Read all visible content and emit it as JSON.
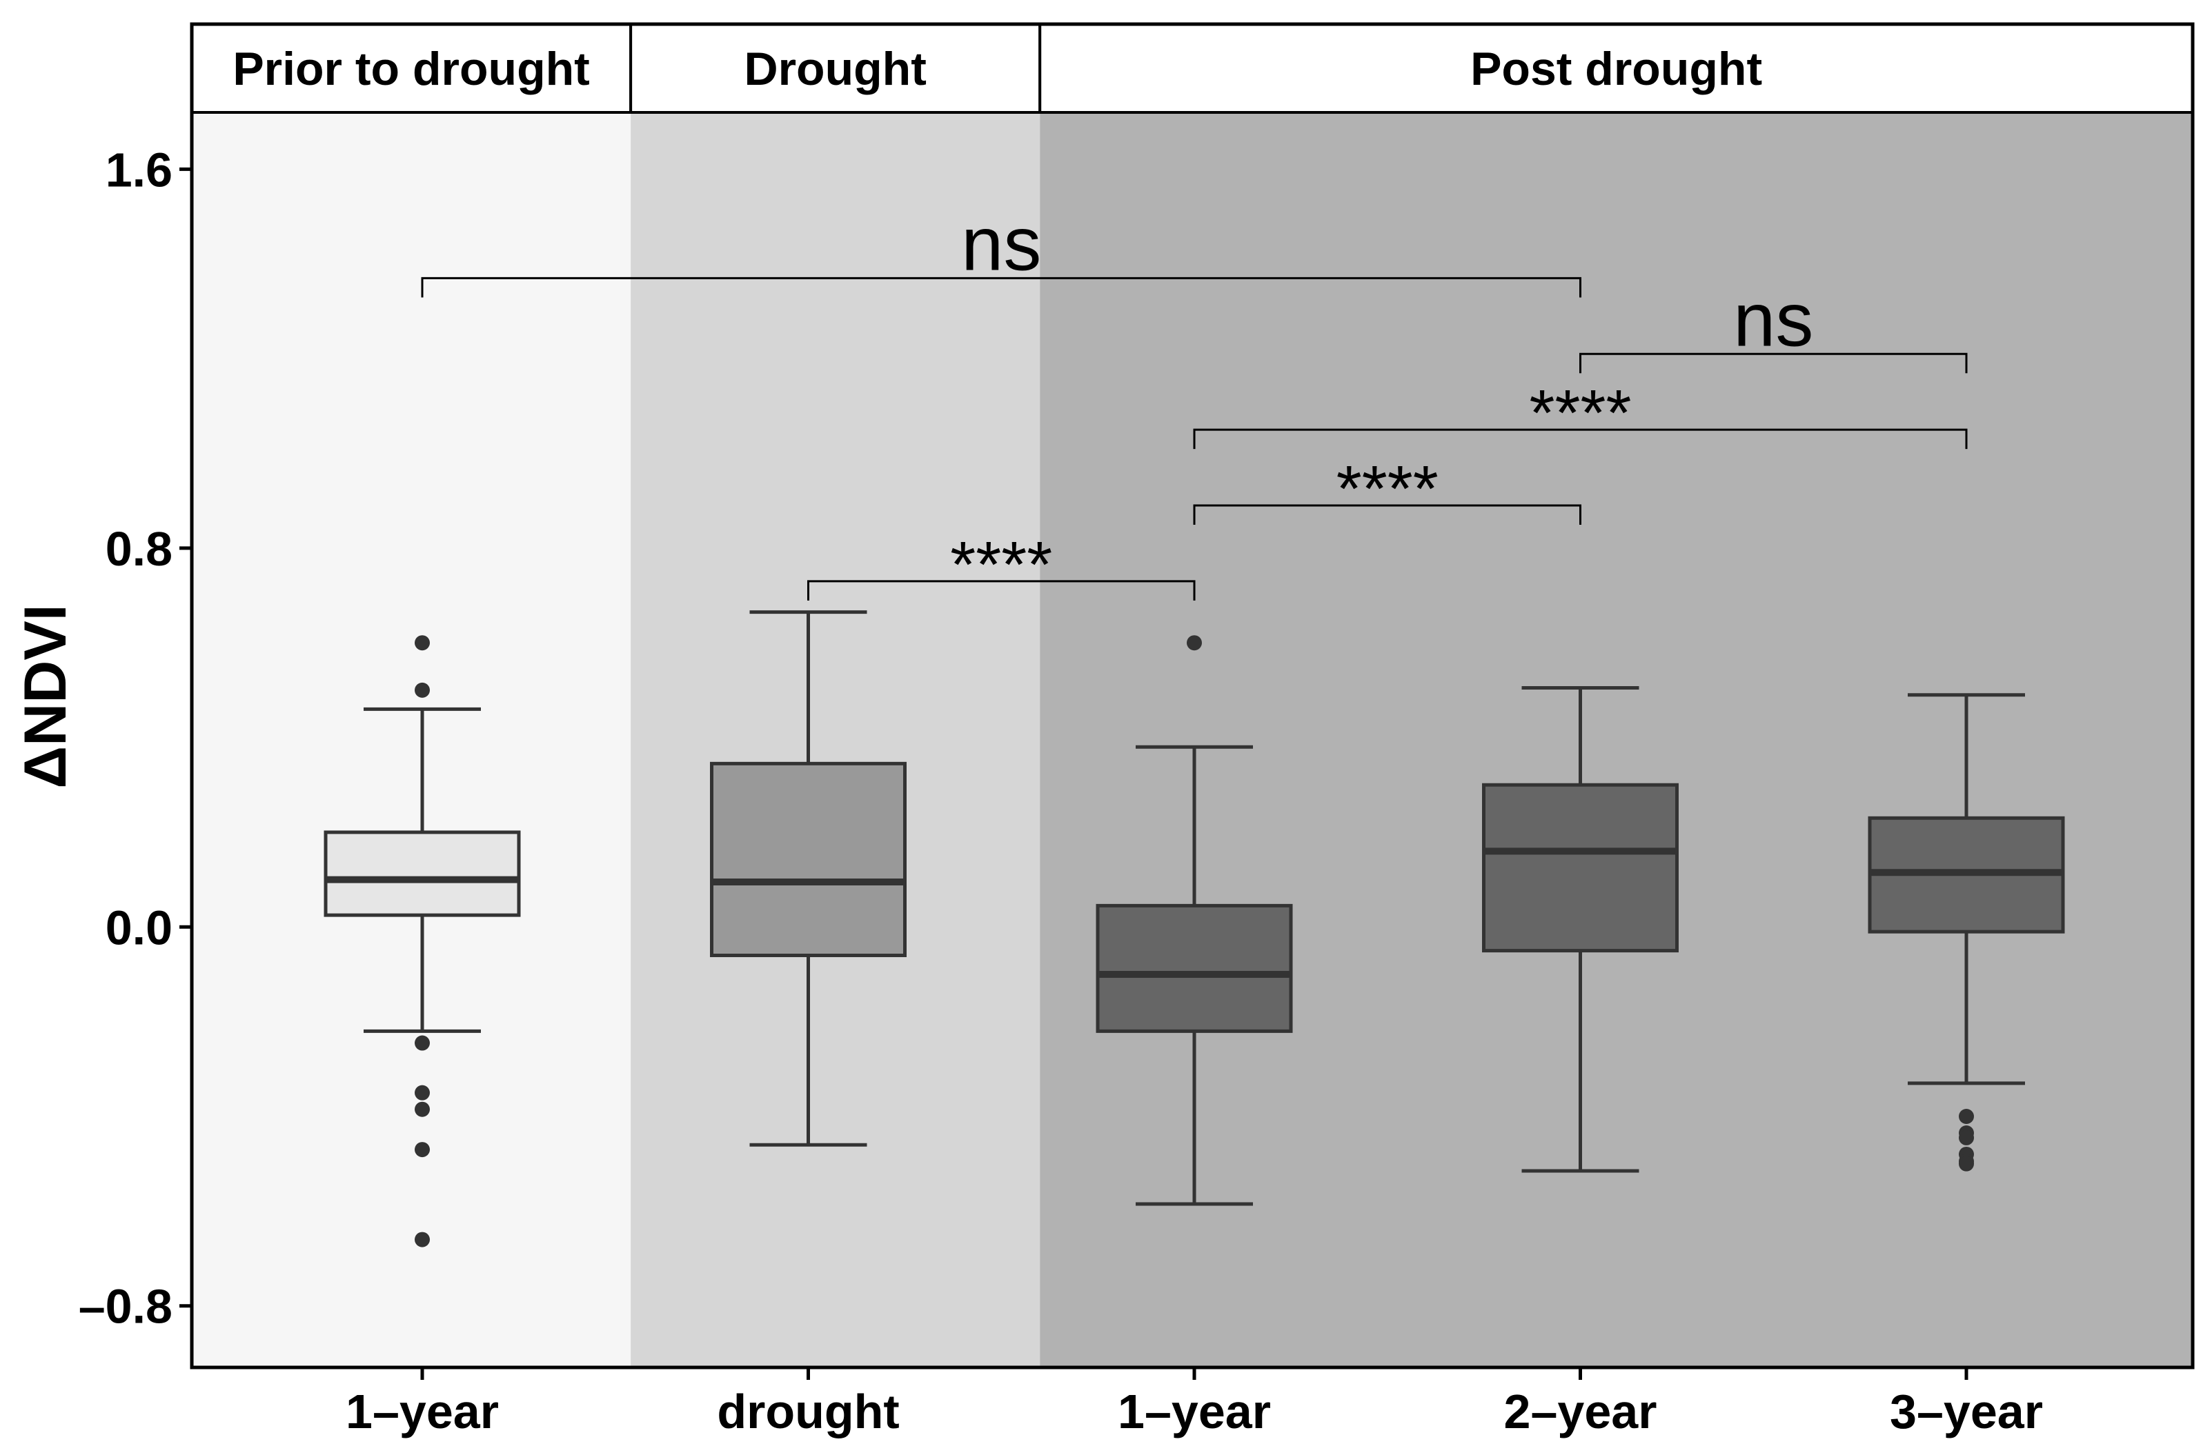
{
  "chart_data": {
    "type": "box",
    "ylabel": "ΔNDVI",
    "xlabel": "",
    "ylim": [
      -0.93,
      1.72
    ],
    "yticks": [
      {
        "value": -0.8,
        "label": "–0.8"
      },
      {
        "value": 0.0,
        "label": "0.0"
      },
      {
        "value": 0.8,
        "label": "0.8"
      },
      {
        "value": 1.6,
        "label": "1.6"
      }
    ],
    "panels": [
      {
        "label": "Prior to drought",
        "from": 0.5,
        "to": 1.54,
        "color": "#f6f6f6"
      },
      {
        "label": "Drought",
        "from": 1.54,
        "to": 2.6,
        "color": "#d6d6d6"
      },
      {
        "label": "Post drought",
        "from": 2.6,
        "to": 5.6,
        "color": "#b2b2b2"
      }
    ],
    "categories": [
      "1–year",
      "drought",
      "1–year",
      "2–year",
      "3–year"
    ],
    "boxes": [
      {
        "category": "1–year",
        "panel": "Prior to drought",
        "fill": "#e6e6e6",
        "whisker_low": -0.22,
        "q1": 0.025,
        "median": 0.1,
        "q3": 0.2,
        "whisker_high": 0.46,
        "outliers": [
          0.6,
          0.5,
          -0.245,
          -0.35,
          -0.385,
          -0.47,
          -0.66
        ]
      },
      {
        "category": "drought",
        "panel": "Drought",
        "fill": "#999999",
        "whisker_low": -0.46,
        "q1": -0.06,
        "median": 0.095,
        "q3": 0.345,
        "whisker_high": 0.665,
        "outliers": []
      },
      {
        "category": "1–year",
        "panel": "Post drought",
        "fill": "#666666",
        "whisker_low": -0.585,
        "q1": -0.22,
        "median": -0.1,
        "q3": 0.045,
        "whisker_high": 0.38,
        "outliers": [
          0.6
        ]
      },
      {
        "category": "2–year",
        "panel": "Post drought",
        "fill": "#666666",
        "whisker_low": -0.515,
        "q1": -0.05,
        "median": 0.16,
        "q3": 0.3,
        "whisker_high": 0.505,
        "outliers": []
      },
      {
        "category": "3–year",
        "panel": "Post drought",
        "fill": "#666666",
        "whisker_low": -0.33,
        "q1": -0.01,
        "median": 0.115,
        "q3": 0.23,
        "whisker_high": 0.49,
        "outliers": [
          -0.4,
          -0.435,
          -0.445,
          -0.48,
          -0.495,
          -0.5
        ]
      }
    ],
    "comparisons": [
      {
        "from": 1,
        "to": 4,
        "y": 1.37,
        "label": "ns"
      },
      {
        "from": 4,
        "to": 5,
        "y": 1.21,
        "label": "ns"
      },
      {
        "from": 3,
        "to": 5,
        "y": 1.05,
        "label": "****"
      },
      {
        "from": 3,
        "to": 4,
        "y": 0.89,
        "label": "****"
      },
      {
        "from": 2,
        "to": 3,
        "y": 0.73,
        "label": "****"
      }
    ]
  }
}
